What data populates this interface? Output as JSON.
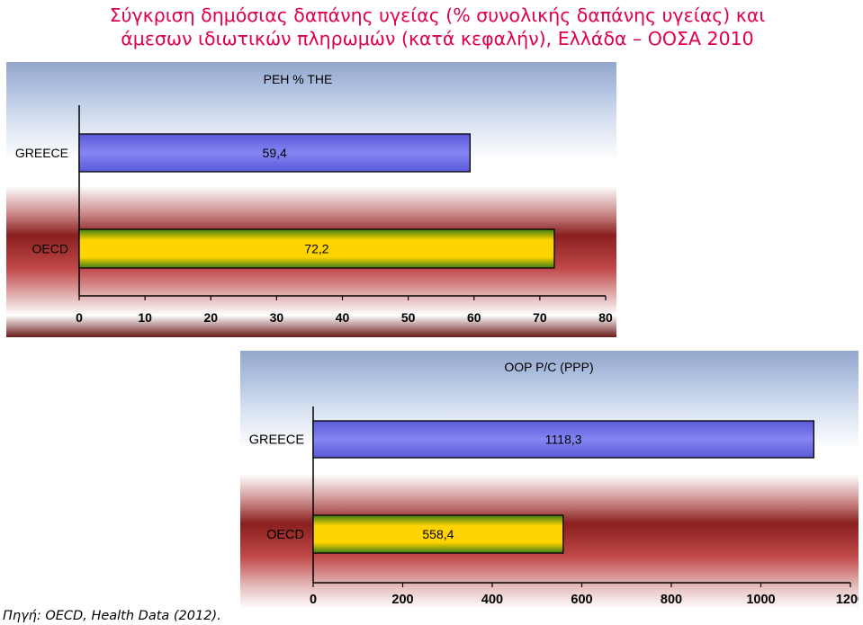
{
  "title_line1": "Σύγκριση δημόσιας δαπάνης υγείας (% συνολικής δαπάνης υγείας) και",
  "title_line2": "άμεσων ιδιωτικών πληρωμών (κατά κεφαλήν), Ελλάδα – ΟΟΣΑ 2010",
  "source": "Πηγή: OECD, Health Data (2012).",
  "colors": {
    "greece_bar": "#8585f2",
    "oecd_bar_center": "#ffd400",
    "oecd_bar_edge": "#3e7d16"
  },
  "chart_data": [
    {
      "type": "bar",
      "orientation": "horizontal",
      "title": "PEH % THE",
      "categories": [
        "GREECE",
        "OECD"
      ],
      "values": [
        59.4,
        72.2
      ],
      "data_labels": [
        "59,4",
        "72,2"
      ],
      "xlim": [
        0,
        80
      ],
      "xticks": [
        0,
        10,
        20,
        30,
        40,
        50,
        60,
        70,
        80
      ],
      "tick_labels": [
        "0",
        "10",
        "20",
        "30",
        "40",
        "50",
        "60",
        "70",
        "80"
      ],
      "legend": "none"
    },
    {
      "type": "bar",
      "orientation": "horizontal",
      "title": "OOP P/C (PPP)",
      "categories": [
        "GREECE",
        "OECD"
      ],
      "values": [
        1118.3,
        558.4
      ],
      "data_labels": [
        "1118,3",
        "558,4"
      ],
      "xlim": [
        0,
        1200
      ],
      "xticks": [
        0,
        200,
        400,
        600,
        800,
        1000,
        1200
      ],
      "tick_labels": [
        "0",
        "200",
        "400",
        "600",
        "800",
        "1000",
        "1200"
      ],
      "legend": "none"
    }
  ]
}
